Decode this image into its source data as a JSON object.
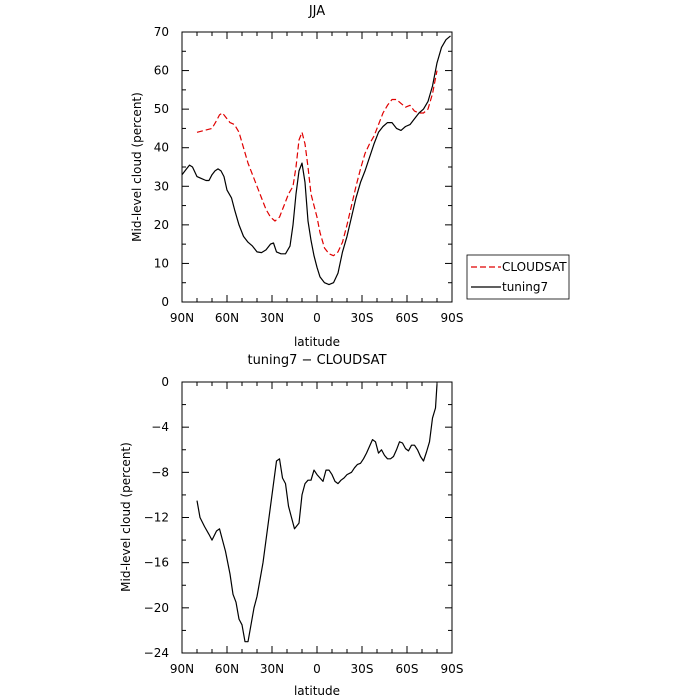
{
  "chart_data": [
    {
      "type": "line",
      "title": "JJA",
      "xlabel": "latitude",
      "ylabel": "Mid-level cloud (percent)",
      "xlim": [
        90,
        -90
      ],
      "ylim": [
        0,
        70
      ],
      "xticks": [
        90,
        60,
        30,
        0,
        -30,
        -60,
        -90
      ],
      "xtick_labels": [
        "90N",
        "60N",
        "30N",
        "0",
        "30S",
        "60S",
        "90S"
      ],
      "yticks": [
        0,
        10,
        20,
        30,
        40,
        50,
        60,
        70
      ],
      "ytick_labels": [
        "0",
        "10",
        "20",
        "30",
        "40",
        "50",
        "60",
        "70"
      ],
      "legend": {
        "placement": "right"
      },
      "series": [
        {
          "name": "CLOUDSAT",
          "color": "#e00000",
          "dash": "dashed",
          "x": [
            80,
            75,
            70,
            67,
            65,
            63,
            61,
            58,
            55,
            52,
            49,
            46,
            43,
            40,
            37,
            34,
            31,
            28,
            25,
            22,
            19,
            16,
            14,
            12,
            10,
            8,
            6,
            4,
            2,
            0,
            -2,
            -5,
            -8,
            -11,
            -14,
            -17,
            -20,
            -23,
            -26,
            -29,
            -32,
            -35,
            -38,
            -41,
            -44,
            -47,
            -50,
            -53,
            -56,
            -59,
            -62,
            -65,
            -68,
            -71,
            -74,
            -77,
            -80
          ],
          "values": [
            44,
            44.5,
            45,
            47,
            48.5,
            49,
            48,
            46.5,
            46,
            44,
            40,
            36,
            33,
            30,
            27,
            24,
            22,
            21,
            22,
            25,
            28,
            30,
            35,
            42,
            44,
            41,
            35,
            28,
            25,
            22,
            18,
            14,
            12.5,
            12,
            13,
            15.5,
            20,
            25,
            30,
            34.5,
            38.5,
            41,
            43,
            46,
            49,
            51,
            52.5,
            52.5,
            51.5,
            50.5,
            51,
            49.5,
            49,
            49,
            50,
            54,
            60
          ]
        },
        {
          "name": "tuning7",
          "color": "#000000",
          "dash": "solid",
          "x": [
            90,
            87,
            85,
            83,
            80,
            77,
            74,
            72,
            70,
            68,
            66,
            64,
            62,
            60,
            57,
            55,
            52,
            49,
            46,
            43,
            40,
            37,
            34,
            31,
            29,
            27,
            24,
            21,
            18,
            16,
            14,
            12,
            10,
            8,
            6,
            4,
            2,
            0,
            -2,
            -5,
            -8,
            -11,
            -14,
            -17,
            -20,
            -23,
            -26,
            -29,
            -32,
            -35,
            -38,
            -41,
            -44,
            -47,
            -50,
            -53,
            -56,
            -59,
            -62,
            -65,
            -68,
            -71,
            -74,
            -77,
            -80,
            -83,
            -86,
            -89
          ],
          "values": [
            33,
            34.5,
            35.5,
            35,
            32.5,
            32,
            31.5,
            31.5,
            33,
            34,
            34.5,
            34,
            32.5,
            29,
            27,
            24,
            20,
            17,
            15.5,
            14.5,
            13,
            12.8,
            13.5,
            15,
            15.3,
            13,
            12.5,
            12.5,
            14.5,
            20,
            28,
            34,
            36,
            31,
            21,
            16,
            12,
            9,
            6.5,
            5,
            4.5,
            5,
            7.5,
            13,
            17,
            22,
            27,
            31,
            34,
            37.5,
            41,
            44,
            45.5,
            46.5,
            46.5,
            45,
            44.5,
            45.5,
            46,
            47.5,
            49,
            50,
            52,
            56,
            62,
            66,
            68,
            69
          ]
        }
      ]
    },
    {
      "type": "line",
      "title": "tuning7 − CLOUDSAT",
      "xlabel": "latitude",
      "ylabel": "Mid-level cloud (percent)",
      "xlim": [
        90,
        -90
      ],
      "ylim": [
        -24,
        0
      ],
      "xticks": [
        90,
        60,
        30,
        0,
        -30,
        -60,
        -90
      ],
      "xtick_labels": [
        "90N",
        "60N",
        "30N",
        "0",
        "30S",
        "60S",
        "90S"
      ],
      "yticks": [
        0,
        -4,
        -8,
        -12,
        -16,
        -20,
        -24
      ],
      "ytick_labels": [
        "0",
        "−4",
        "−8",
        "−12",
        "−16",
        "−20",
        "−24"
      ],
      "series": [
        {
          "color": "#000000",
          "dash": "solid",
          "x": [
            80,
            78,
            75,
            72,
            70,
            67,
            65,
            63,
            61,
            58,
            56,
            54,
            52,
            50,
            48,
            46,
            44,
            42,
            40,
            38,
            36,
            34,
            31,
            29,
            27,
            25,
            23,
            21,
            19,
            17,
            15,
            12,
            10,
            8,
            6,
            4,
            2,
            0,
            -2,
            -4,
            -6,
            -8,
            -10,
            -12,
            -14,
            -16,
            -18,
            -20,
            -23,
            -25,
            -27,
            -29,
            -31,
            -33,
            -35,
            -37,
            -39,
            -41,
            -43,
            -45,
            -47,
            -49,
            -51,
            -53,
            -55,
            -57,
            -59,
            -61,
            -63,
            -65,
            -67,
            -69,
            -71,
            -73,
            -75,
            -77,
            -79,
            -80
          ],
          "values": [
            -10.5,
            -12,
            -12.8,
            -13.5,
            -14,
            -13.2,
            -13,
            -14,
            -15,
            -17,
            -18.8,
            -19.5,
            -21,
            -21.5,
            -23,
            -23,
            -21.5,
            -20,
            -19,
            -17.5,
            -16,
            -14,
            -11,
            -9,
            -7,
            -6.8,
            -8.5,
            -9,
            -11,
            -12,
            -13,
            -12.5,
            -10,
            -9,
            -8.7,
            -8.7,
            -7.8,
            -8.2,
            -8.5,
            -8.8,
            -7.8,
            -7.8,
            -8.2,
            -8.8,
            -9,
            -8.7,
            -8.5,
            -8.2,
            -8.0,
            -7.6,
            -7.3,
            -7.2,
            -6.8,
            -6.3,
            -5.7,
            -5.1,
            -5.3,
            -6.3,
            -6.0,
            -6.5,
            -6.8,
            -6.8,
            -6.6,
            -6.0,
            -5.3,
            -5.4,
            -5.9,
            -6.1,
            -5.6,
            -5.6,
            -6.0,
            -6.6,
            -7.0,
            -6.2,
            -5.3,
            -3.2,
            -2.3,
            -0.2
          ]
        }
      ]
    }
  ]
}
